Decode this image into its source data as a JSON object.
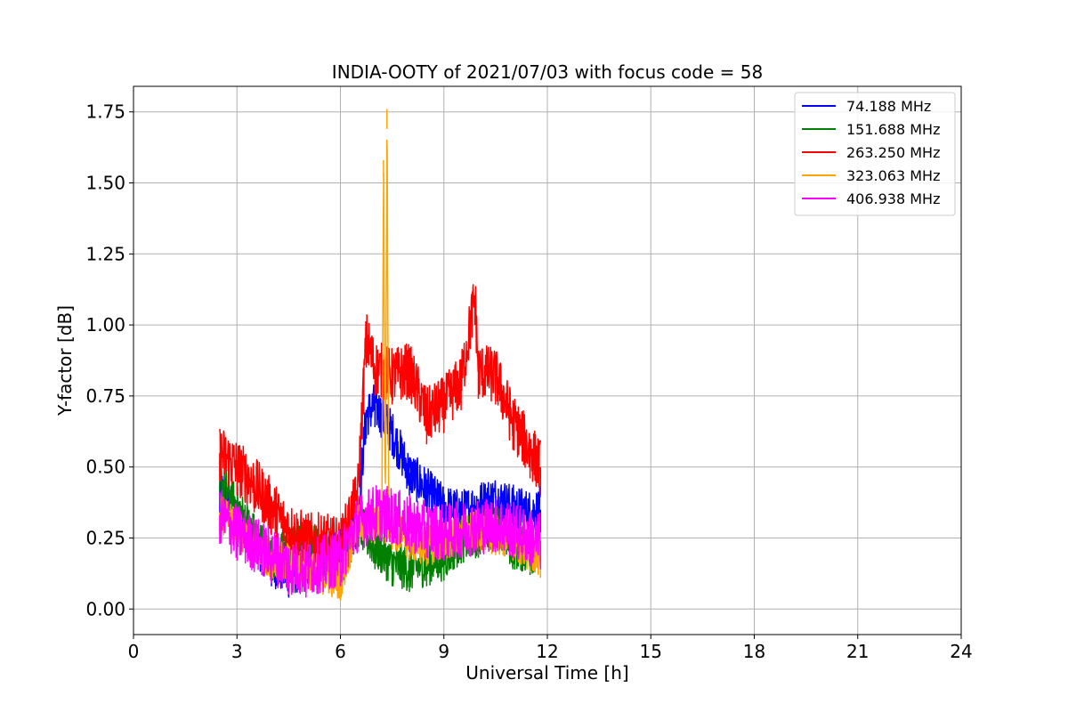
{
  "chart_data": {
    "type": "line",
    "title": "INDIA-OOTY of 2021/07/03 with focus code = 58",
    "xlabel": "Universal Time [h]",
    "ylabel": "Y-factor [dB]",
    "xlim": [
      0,
      24
    ],
    "ylim": [
      -0.09,
      1.84
    ],
    "xticks": [
      0,
      3,
      6,
      9,
      12,
      15,
      18,
      21,
      24
    ],
    "xtick_labels": [
      "0",
      "3",
      "6",
      "9",
      "12",
      "15",
      "18",
      "21",
      "24"
    ],
    "yticks": [
      0.0,
      0.25,
      0.5,
      0.75,
      1.0,
      1.25,
      1.5,
      1.75
    ],
    "ytick_labels": [
      "0.00",
      "0.25",
      "0.50",
      "0.75",
      "1.00",
      "1.25",
      "1.50",
      "1.75"
    ],
    "grid": true,
    "legend_position": "top-right",
    "series": [
      {
        "name": " 74.188 MHz",
        "color": "#0000ff",
        "spread": 0.08,
        "x": [
          2.5,
          3.0,
          3.5,
          4.0,
          4.5,
          5.0,
          5.5,
          6.0,
          6.5,
          6.75,
          7.0,
          7.5,
          8.0,
          8.5,
          9.0,
          9.5,
          10.0,
          10.5,
          11.0,
          11.5,
          11.8
        ],
        "y": [
          0.42,
          0.32,
          0.24,
          0.16,
          0.12,
          0.15,
          0.17,
          0.2,
          0.32,
          0.68,
          0.72,
          0.62,
          0.48,
          0.42,
          0.36,
          0.34,
          0.37,
          0.39,
          0.36,
          0.34,
          0.35
        ]
      },
      {
        "name": "151.688 MHz",
        "color": "#008000",
        "spread": 0.08,
        "x": [
          2.5,
          3.0,
          3.5,
          4.0,
          4.5,
          5.0,
          5.5,
          6.0,
          6.5,
          7.0,
          7.5,
          8.0,
          8.5,
          9.0,
          9.5,
          10.0,
          10.5,
          11.0,
          11.5,
          11.8
        ],
        "y": [
          0.45,
          0.36,
          0.26,
          0.18,
          0.2,
          0.24,
          0.2,
          0.15,
          0.3,
          0.22,
          0.16,
          0.14,
          0.16,
          0.18,
          0.24,
          0.26,
          0.3,
          0.22,
          0.2,
          0.22
        ]
      },
      {
        "name": "263.250 MHz",
        "color": "#ff0000",
        "spread": 0.1,
        "x": [
          2.5,
          3.0,
          3.5,
          4.0,
          4.5,
          5.0,
          5.5,
          6.0,
          6.5,
          6.75,
          7.0,
          7.5,
          8.0,
          8.5,
          9.0,
          9.5,
          9.9,
          10.0,
          10.5,
          11.0,
          11.5,
          11.8
        ],
        "y": [
          0.55,
          0.5,
          0.44,
          0.36,
          0.28,
          0.24,
          0.24,
          0.22,
          0.4,
          0.95,
          0.85,
          0.82,
          0.84,
          0.68,
          0.72,
          0.8,
          1.1,
          0.84,
          0.82,
          0.66,
          0.56,
          0.5
        ]
      },
      {
        "name": "323.063 MHz",
        "color": "#ffa500",
        "spread": 0.07,
        "x": [
          2.5,
          3.0,
          3.5,
          4.0,
          4.5,
          5.0,
          5.5,
          6.0,
          6.5,
          7.0,
          7.2,
          7.25,
          7.3,
          7.35,
          7.4,
          7.5,
          8.0,
          8.5,
          9.0,
          9.5,
          10.0,
          10.5,
          11.0,
          11.5,
          11.8
        ],
        "y": [
          0.34,
          0.28,
          0.22,
          0.18,
          0.16,
          0.14,
          0.12,
          0.1,
          0.3,
          0.3,
          0.32,
          1.58,
          0.3,
          1.76,
          0.32,
          0.28,
          0.24,
          0.22,
          0.24,
          0.26,
          0.28,
          0.26,
          0.24,
          0.2,
          0.18
        ]
      },
      {
        "name": "406.938 MHz",
        "color": "#ff00ff",
        "spread": 0.1,
        "x": [
          2.5,
          3.0,
          3.5,
          4.0,
          4.5,
          5.0,
          5.5,
          6.0,
          6.5,
          7.0,
          7.5,
          8.0,
          8.5,
          9.0,
          9.5,
          10.0,
          10.5,
          11.0,
          11.5,
          11.8
        ],
        "y": [
          0.33,
          0.27,
          0.23,
          0.19,
          0.15,
          0.14,
          0.16,
          0.18,
          0.3,
          0.34,
          0.33,
          0.3,
          0.28,
          0.27,
          0.28,
          0.29,
          0.3,
          0.28,
          0.25,
          0.24
        ]
      }
    ]
  }
}
